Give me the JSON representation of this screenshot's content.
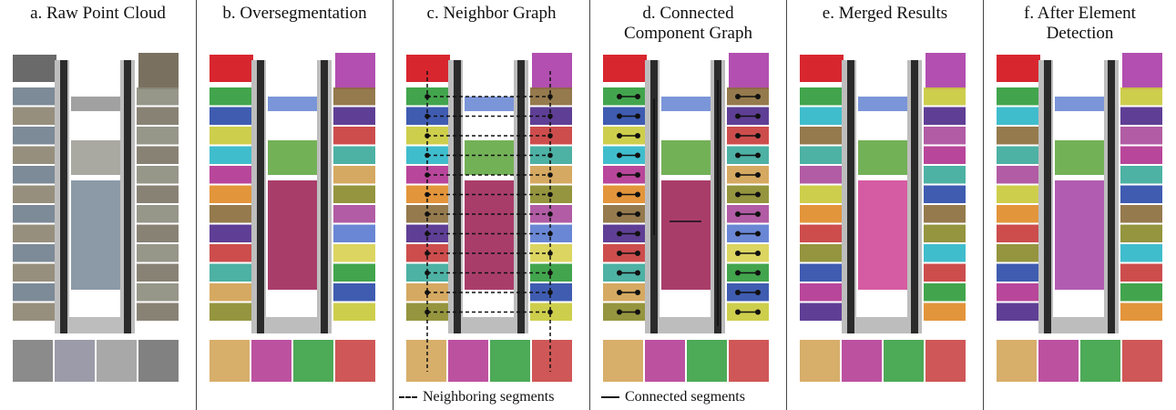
{
  "panels": [
    {
      "id": "a",
      "title": "a. Raw Point Cloud",
      "mode": "raw"
    },
    {
      "id": "b",
      "title": "b. Oversegmentation",
      "mode": "seg"
    },
    {
      "id": "c",
      "title": "c. Neighbor Graph",
      "mode": "neighbor"
    },
    {
      "id": "d",
      "title": "d. Connected\nComponent Graph",
      "mode": "connected"
    },
    {
      "id": "e",
      "title": "e. Merged Results",
      "mode": "merged"
    },
    {
      "id": "f",
      "title": "f. After Element\nDetection",
      "mode": "elements"
    }
  ],
  "legend": {
    "neighboring": "Neighboring segments",
    "connected": "Connected segments"
  },
  "palette": [
    "#2e9b3a",
    "#2a4aa8",
    "#c9c93a",
    "#2bb6c8",
    "#b0328f",
    "#e08a26",
    "#8a6b3a",
    "#4e2a8a",
    "#c83a3a",
    "#3aa89a",
    "#d0a050",
    "#8a8a2a",
    "#a84a9a",
    "#5a7ad0",
    "#d8d050",
    "#3a3a3a"
  ],
  "colors": {
    "wall": "#2b2b2b",
    "corridor": "#bdbdbd",
    "background": "#ffffff"
  }
}
